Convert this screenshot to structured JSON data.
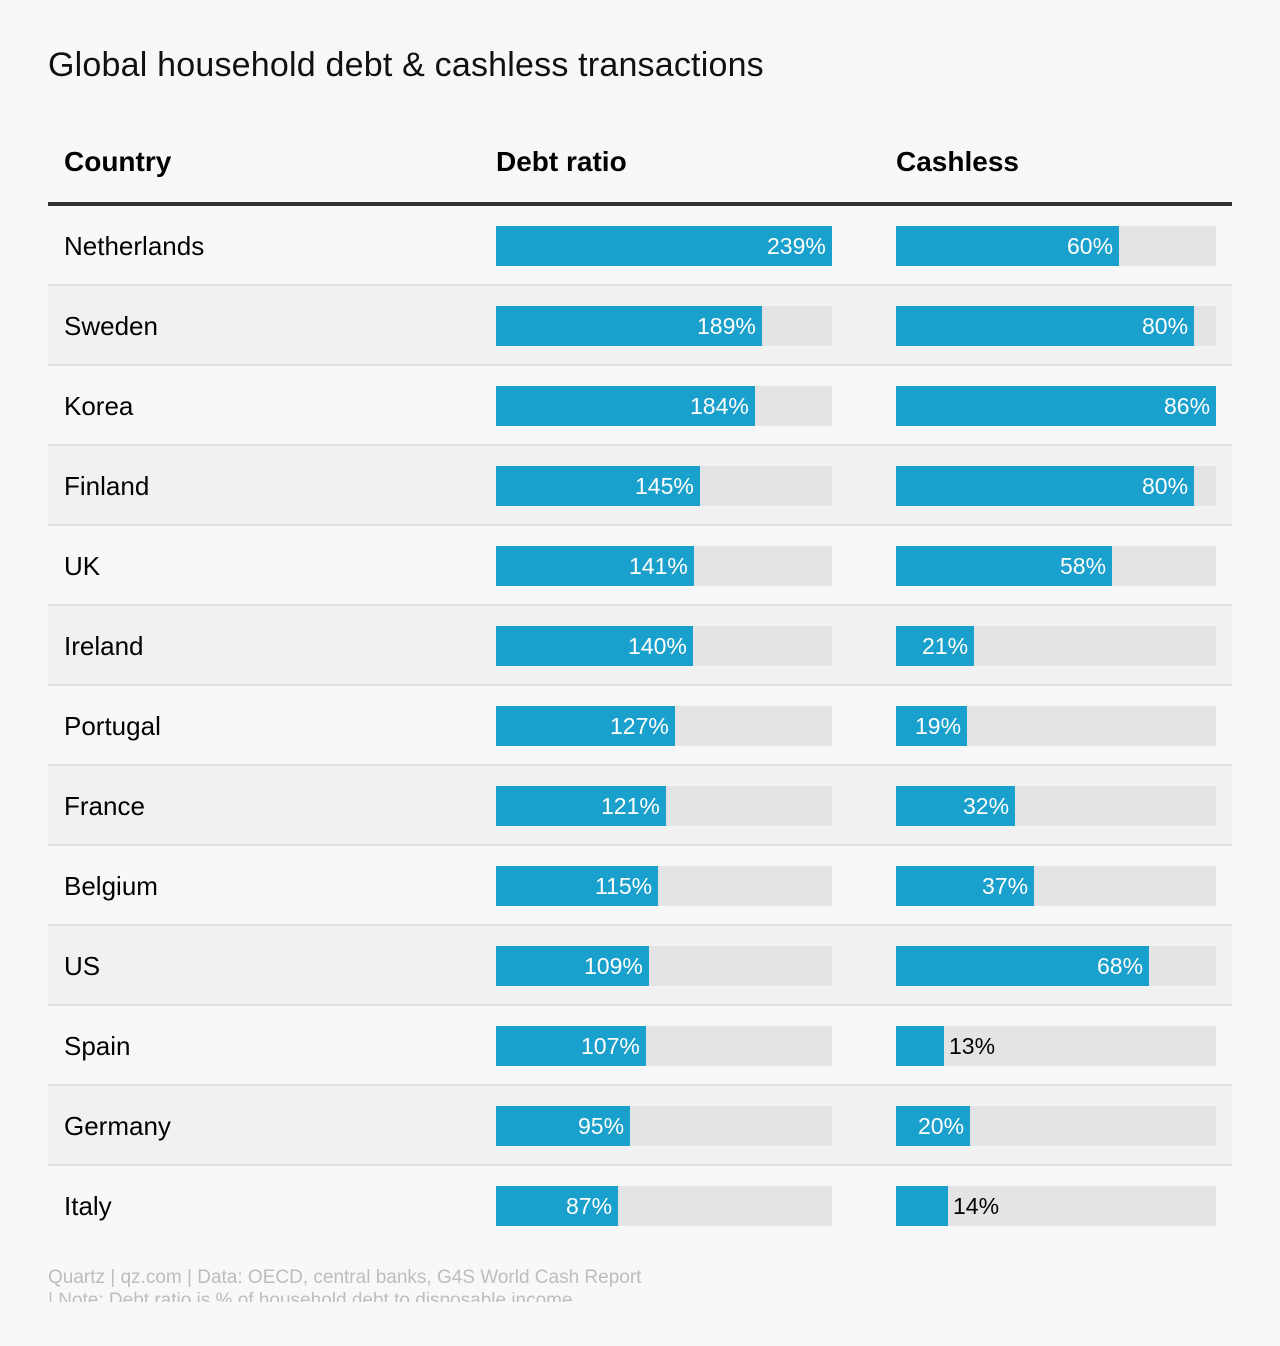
{
  "title": "Global household debt & cashless transactions",
  "header": {
    "country": "Country",
    "debt": "Debt ratio",
    "cash": "Cashless"
  },
  "colors": {
    "bar": "#1aa0cc",
    "track": "#e4e4e4"
  },
  "footer": {
    "line1": "Quartz | qz.com | Data: OECD, central banks, G4S World Cash Report",
    "line2": "| Note: Debt ratio is % of household debt to disposable income"
  },
  "chart_data": {
    "type": "table",
    "debt_max": 239,
    "cash_max": 86,
    "rows": [
      {
        "country": "Netherlands",
        "debt": 239,
        "debt_label": "239%",
        "cash": 60,
        "cash_label": "60%"
      },
      {
        "country": "Sweden",
        "debt": 189,
        "debt_label": "189%",
        "cash": 80,
        "cash_label": "80%"
      },
      {
        "country": "Korea",
        "debt": 184,
        "debt_label": "184%",
        "cash": 86,
        "cash_label": "86%"
      },
      {
        "country": "Finland",
        "debt": 145,
        "debt_label": "145%",
        "cash": 80,
        "cash_label": "80%"
      },
      {
        "country": "UK",
        "debt": 141,
        "debt_label": "141%",
        "cash": 58,
        "cash_label": "58%"
      },
      {
        "country": "Ireland",
        "debt": 140,
        "debt_label": "140%",
        "cash": 21,
        "cash_label": "21%"
      },
      {
        "country": "Portugal",
        "debt": 127,
        "debt_label": "127%",
        "cash": 19,
        "cash_label": "19%"
      },
      {
        "country": "France",
        "debt": 121,
        "debt_label": "121%",
        "cash": 32,
        "cash_label": "32%"
      },
      {
        "country": "Belgium",
        "debt": 115,
        "debt_label": "115%",
        "cash": 37,
        "cash_label": "37%"
      },
      {
        "country": "US",
        "debt": 109,
        "debt_label": "109%",
        "cash": 68,
        "cash_label": "68%"
      },
      {
        "country": "Spain",
        "debt": 107,
        "debt_label": "107%",
        "cash": 13,
        "cash_label": "13%"
      },
      {
        "country": "Germany",
        "debt": 95,
        "debt_label": "95%",
        "cash": 20,
        "cash_label": "20%"
      },
      {
        "country": "Italy",
        "debt": 87,
        "debt_label": "87%",
        "cash": 14,
        "cash_label": "14%"
      }
    ]
  }
}
